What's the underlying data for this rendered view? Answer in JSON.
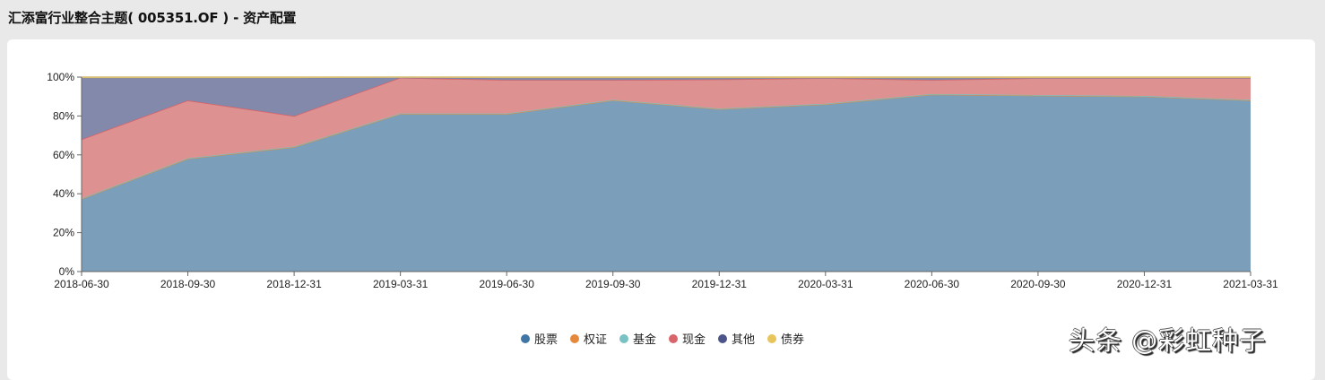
{
  "header": {
    "title": "汇添富行业整合主题( 005351.OF ) - 资产配置"
  },
  "legend": [
    {
      "label": "股票",
      "color": "#3f76a6"
    },
    {
      "label": "权证",
      "color": "#e5893d"
    },
    {
      "label": "基金",
      "color": "#78c2c4"
    },
    {
      "label": "现金",
      "color": "#d9646a"
    },
    {
      "label": "其他",
      "color": "#4b5589"
    },
    {
      "label": "债券",
      "color": "#e8c55b"
    }
  ],
  "watermark": "头条 @彩虹种子",
  "chart_data": {
    "type": "area",
    "stacked": true,
    "title": "汇添富行业整合主题( 005351.OF ) - 资产配置",
    "xlabel": "",
    "ylabel": "",
    "ylim": [
      0,
      100
    ],
    "y_ticks": [
      "0%",
      "20%",
      "40%",
      "60%",
      "80%",
      "100%"
    ],
    "grid": true,
    "legend_position": "bottom",
    "categories": [
      "2018-06-30",
      "2018-09-30",
      "2018-12-31",
      "2019-03-31",
      "2019-06-30",
      "2019-09-30",
      "2019-12-31",
      "2020-03-31",
      "2020-06-30",
      "2020-09-30",
      "2020-12-31",
      "2021-03-31"
    ],
    "series": [
      {
        "name": "股票",
        "color": "#7b9fbb",
        "values": [
          37.3,
          58.0,
          64.0,
          81.0,
          81.0,
          88.0,
          83.5,
          86.0,
          91.0,
          90.5,
          90.0,
          88.0
        ]
      },
      {
        "name": "权证",
        "color": "#e5893d",
        "values": [
          0,
          0,
          0,
          0,
          0,
          0,
          0,
          0,
          0,
          0,
          0,
          0
        ]
      },
      {
        "name": "基金",
        "color": "#78c2c4",
        "values": [
          0.3,
          0.3,
          0.3,
          0.3,
          0.3,
          0.3,
          0.3,
          0.3,
          0.3,
          0.3,
          0.3,
          0.3
        ]
      },
      {
        "name": "现金",
        "color": "#dd9190",
        "values": [
          30.4,
          29.7,
          15.7,
          18.4,
          17.2,
          10.2,
          15.0,
          13.2,
          7.2,
          8.7,
          9.2,
          11.2
        ]
      },
      {
        "name": "其他",
        "color": "#8289ab",
        "values": [
          31.5,
          11.5,
          19.5,
          0,
          1.0,
          1.0,
          0.7,
          0,
          1.0,
          0,
          0,
          0
        ]
      },
      {
        "name": "债券",
        "color": "#e8c55b",
        "values": [
          0.5,
          0.5,
          0.5,
          0.3,
          0.5,
          0.5,
          0.5,
          0.5,
          0.5,
          0.5,
          0.5,
          0.5
        ]
      }
    ]
  }
}
